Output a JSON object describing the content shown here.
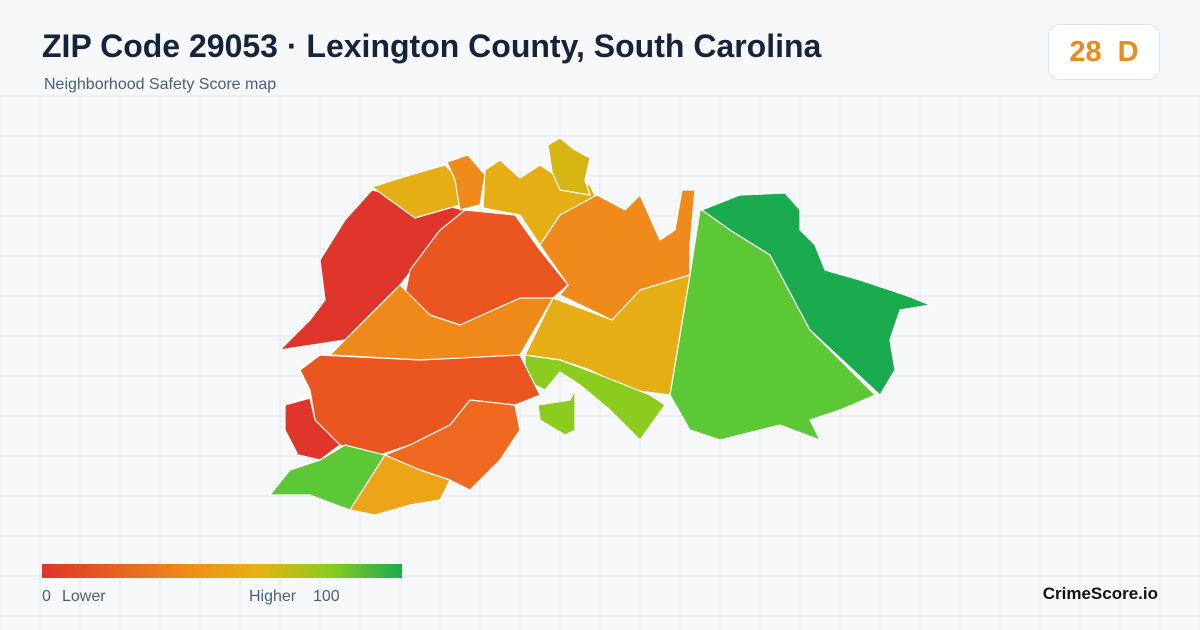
{
  "header": {
    "title": "ZIP Code 29053 · Lexington County, South Carolina",
    "subtitle": "Neighborhood Safety Score map"
  },
  "score": {
    "value": 28,
    "grade": "D"
  },
  "legend": {
    "min": 0,
    "min_label": "Lower",
    "max_label": "Higher",
    "max": 100
  },
  "footer": {
    "brand": "CrimeScore.io"
  }
}
